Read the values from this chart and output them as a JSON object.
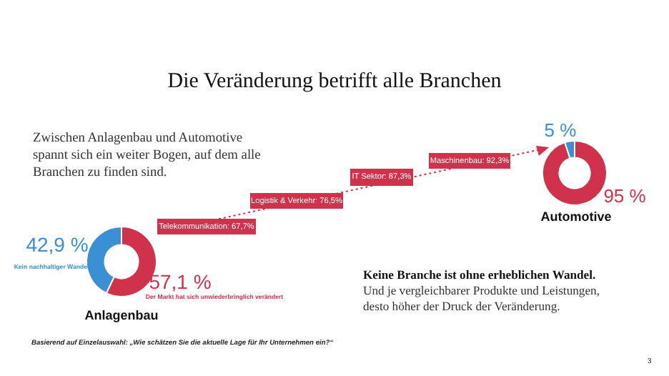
{
  "chart_data": [
    {
      "type": "donut",
      "title": "Anlagenbau",
      "categories": [
        "Kein nachhaltiger Wandel",
        "Der Markt hat sich unwiederbringlich verändert"
      ],
      "values": [
        42.9,
        57.1
      ],
      "colors": [
        "#3b8fd4",
        "#d0324b"
      ],
      "value_labels": [
        "42,9 %",
        "57,1 %"
      ]
    },
    {
      "type": "donut",
      "title": "Automotive",
      "categories": [
        null,
        null
      ],
      "values": [
        5,
        95
      ],
      "colors": [
        "#3b8fd4",
        "#d0324b"
      ],
      "value_labels": [
        "5 %",
        "95 %"
      ]
    },
    {
      "type": "other",
      "title": "Die Veränderung betrifft alle Branchen",
      "annotations": [
        "Zwischen Anlagenbau und Automotive spannt sich ein weiter Bogen, auf dem alle Branchen zu finden sind.",
        "Telekommunikation: 67,7%",
        "Logistik & Verkehr: 76,5%",
        "IT Sektor: 87,3%",
        "Maschinenbau: 92,3%",
        "Keine Branche ist ohne erheblichen Wandel.",
        "Und je vergleichbarer Produkte und Leistungen, desto höher der Druck der Veränderung.",
        "Basierend auf Einzelauswahl: „Wie schätzen Sie die aktuelle Lage für Ihr Unternehmen ein?“",
        "3"
      ]
    }
  ]
}
